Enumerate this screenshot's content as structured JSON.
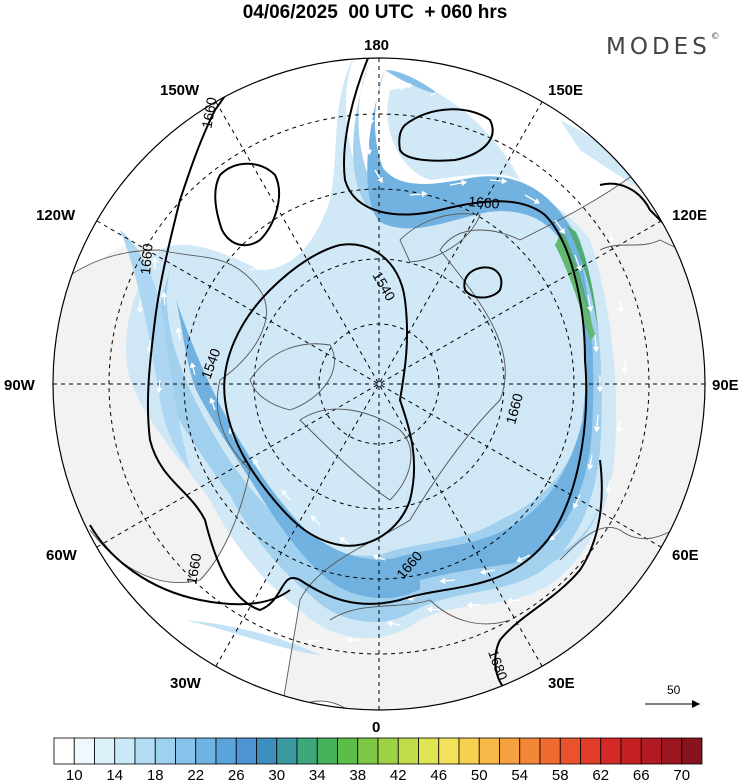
{
  "title": "04/06/2025  00 UTC  + 060 hrs",
  "brand": "MODES",
  "brand_mark": "©",
  "longitude_labels": [
    {
      "id": "180",
      "text": "180"
    },
    {
      "id": "150e",
      "text": "150E"
    },
    {
      "id": "120e",
      "text": "120E"
    },
    {
      "id": "90e",
      "text": "90E"
    },
    {
      "id": "60e",
      "text": "60E"
    },
    {
      "id": "30e",
      "text": "30E"
    },
    {
      "id": "0",
      "text": "0"
    },
    {
      "id": "30w",
      "text": "30W"
    },
    {
      "id": "60w",
      "text": "60W"
    },
    {
      "id": "90w",
      "text": "90W"
    },
    {
      "id": "120w",
      "text": "120W"
    },
    {
      "id": "150w",
      "text": "150W"
    }
  ],
  "contour_labels": [
    "1660",
    "1660",
    "1660",
    "1540",
    "1540",
    "1660",
    "1660",
    "1660",
    "1680"
  ],
  "reference_vector": {
    "label": "50"
  },
  "colorbar": {
    "labels": [
      "10",
      "14",
      "18",
      "22",
      "26",
      "30",
      "34",
      "38",
      "42",
      "46",
      "50",
      "54",
      "58",
      "62",
      "66",
      "70"
    ],
    "colors": [
      "#ffffff",
      "#eef8fd",
      "#ddf1fb",
      "#c9e8f8",
      "#b3ddf4",
      "#9dd1f0",
      "#86c3ea",
      "#6fb3e2",
      "#5aa3db",
      "#4c95d2",
      "#3f8fbd",
      "#3a9aa0",
      "#3da879",
      "#44b25a",
      "#5cbd48",
      "#7cc844",
      "#9ed245",
      "#c1dc49",
      "#dfe551",
      "#f3e15a",
      "#f7cf51",
      "#f8b948",
      "#f6a040",
      "#f38637",
      "#ef6b30",
      "#e9522b",
      "#e03c27",
      "#d42a25",
      "#c42023",
      "#b01a22",
      "#9a1620",
      "#87131e"
    ]
  },
  "colors": {
    "land": "#f2f2f2",
    "ocean": "#ffffff",
    "jet_light": "#bfe1f5",
    "jet_mid": "#79bbe6",
    "jet_strong": "#4e93cf",
    "jet_max": "#4fb35c"
  }
}
